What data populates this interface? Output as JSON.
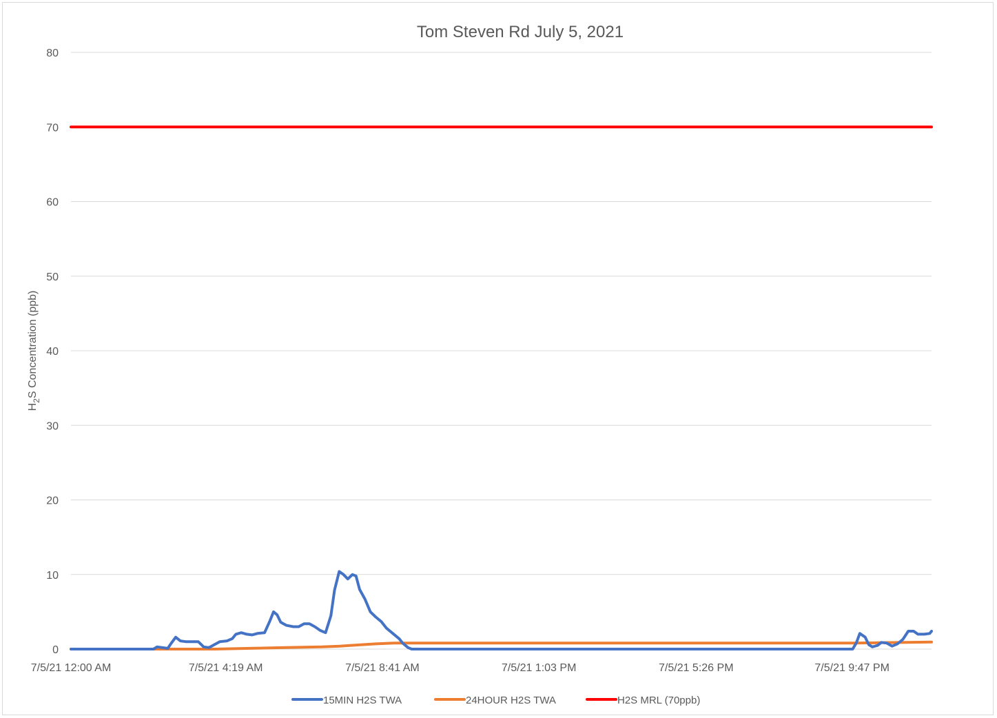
{
  "chart_data": {
    "type": "line",
    "title": "Tom Steven Rd July 5, 2021",
    "ylabel": {
      "main": "H",
      "sub": "2",
      "rest": "S Concentration (ppb)"
    },
    "xlabel": "",
    "ylim": [
      0,
      80
    ],
    "yticks": [
      0,
      10,
      20,
      30,
      40,
      50,
      60,
      70,
      80
    ],
    "x_range_hours": [
      0,
      24
    ],
    "xtick_labels": [
      {
        "label": "7/5/21 12:00 AM",
        "hour": 0
      },
      {
        "label": "7/5/21 4:19 AM",
        "hour": 4.3167
      },
      {
        "label": "7/5/21 8:41 AM",
        "hour": 8.6833
      },
      {
        "label": "7/5/21 1:03 PM",
        "hour": 13.05
      },
      {
        "label": "7/5/21 5:26 PM",
        "hour": 17.4333
      },
      {
        "label": "7/5/21 9:47 PM",
        "hour": 21.7833
      }
    ],
    "grid": true,
    "legend_position": "bottom",
    "series": [
      {
        "name": "15MIN H2S TWA",
        "color": "#4472c4",
        "points": [
          [
            0,
            0
          ],
          [
            2.3,
            0
          ],
          [
            2.4,
            0.3
          ],
          [
            2.55,
            0.2
          ],
          [
            2.7,
            0.1
          ],
          [
            2.8,
            0.8
          ],
          [
            2.92,
            1.6
          ],
          [
            3.05,
            1.1
          ],
          [
            3.2,
            1
          ],
          [
            3.4,
            1
          ],
          [
            3.55,
            1
          ],
          [
            3.7,
            0.3
          ],
          [
            3.85,
            0.2
          ],
          [
            4.0,
            0.6
          ],
          [
            4.15,
            1
          ],
          [
            4.35,
            1.1
          ],
          [
            4.5,
            1.4
          ],
          [
            4.6,
            2
          ],
          [
            4.75,
            2.2
          ],
          [
            4.9,
            2
          ],
          [
            5.05,
            1.9
          ],
          [
            5.2,
            2.1
          ],
          [
            5.4,
            2.2
          ],
          [
            5.55,
            3.8
          ],
          [
            5.65,
            5
          ],
          [
            5.75,
            4.6
          ],
          [
            5.85,
            3.6
          ],
          [
            6.0,
            3.2
          ],
          [
            6.2,
            3
          ],
          [
            6.35,
            3
          ],
          [
            6.5,
            3.4
          ],
          [
            6.65,
            3.4
          ],
          [
            6.8,
            3
          ],
          [
            6.95,
            2.5
          ],
          [
            7.1,
            2.2
          ],
          [
            7.25,
            4.5
          ],
          [
            7.35,
            7.9
          ],
          [
            7.48,
            10.4
          ],
          [
            7.6,
            10
          ],
          [
            7.72,
            9.4
          ],
          [
            7.85,
            10
          ],
          [
            7.95,
            9.8
          ],
          [
            8.05,
            8
          ],
          [
            8.2,
            6.7
          ],
          [
            8.35,
            5
          ],
          [
            8.5,
            4.3
          ],
          [
            8.65,
            3.7
          ],
          [
            8.8,
            2.8
          ],
          [
            8.95,
            2.2
          ],
          [
            9.15,
            1.4
          ],
          [
            9.25,
            0.8
          ],
          [
            9.4,
            0.2
          ],
          [
            9.5,
            0
          ],
          [
            21.8,
            0
          ],
          [
            21.9,
            0.8
          ],
          [
            22.0,
            2.1
          ],
          [
            22.15,
            1.6
          ],
          [
            22.25,
            0.6
          ],
          [
            22.35,
            0.3
          ],
          [
            22.5,
            0.5
          ],
          [
            22.6,
            0.9
          ],
          [
            22.75,
            0.8
          ],
          [
            22.9,
            0.4
          ],
          [
            23.05,
            0.7
          ],
          [
            23.2,
            1.3
          ],
          [
            23.35,
            2.4
          ],
          [
            23.5,
            2.4
          ],
          [
            23.62,
            2
          ],
          [
            23.8,
            2
          ],
          [
            23.95,
            2.1
          ],
          [
            24,
            2.4
          ]
        ]
      },
      {
        "name": "24HOUR H2S TWA",
        "color": "#ed7d31",
        "points": [
          [
            0,
            0
          ],
          [
            4.0,
            0
          ],
          [
            5.0,
            0.1
          ],
          [
            6.0,
            0.2
          ],
          [
            7.0,
            0.3
          ],
          [
            7.5,
            0.4
          ],
          [
            8.0,
            0.55
          ],
          [
            8.5,
            0.7
          ],
          [
            9.0,
            0.8
          ],
          [
            9.3,
            0.8
          ],
          [
            21.8,
            0.8
          ],
          [
            22.5,
            0.85
          ],
          [
            23.3,
            0.9
          ],
          [
            24,
            0.95
          ]
        ]
      },
      {
        "name": "H2S MRL (70ppb)",
        "color": "#ff0000",
        "points": [
          [
            0,
            70
          ],
          [
            24,
            70
          ]
        ]
      }
    ]
  }
}
